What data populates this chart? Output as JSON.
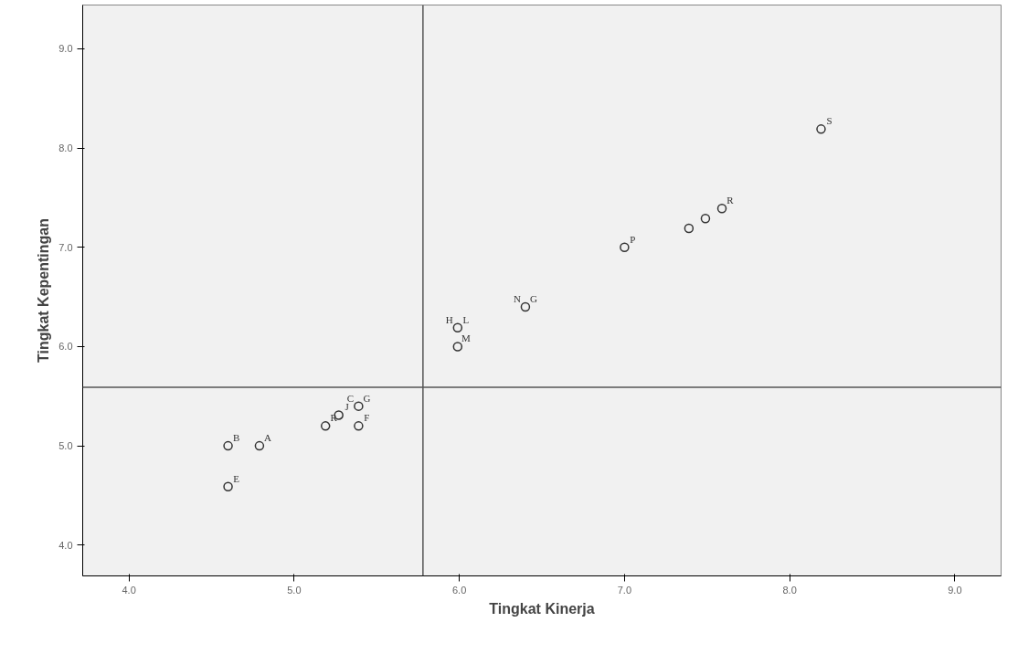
{
  "chart_data": {
    "type": "scatter",
    "xlabel": "Tingkat Kinerja",
    "ylabel": "Tingkat Kepentingan",
    "x": [
      4.6,
      4.79,
      4.6,
      5.19,
      5.27,
      5.39,
      5.39,
      5.99,
      5.99,
      6.4,
      7.0,
      7.39,
      7.49,
      7.59,
      8.19
    ],
    "series": [
      {
        "color": "#333333",
        "values": [
          5.0,
          5.0,
          4.59,
          5.2,
          5.31,
          5.4,
          5.2,
          6.19,
          6.0,
          6.4,
          7.0,
          7.19,
          7.29,
          7.39,
          8.19
        ]
      }
    ],
    "marker": "circle",
    "grid": false,
    "xlim": [
      3.72,
      9.28
    ],
    "ylim": [
      3.69,
      9.44
    ],
    "xticks": [
      {
        "value": 4,
        "label": "4.0"
      },
      {
        "value": 5,
        "label": "5.0"
      },
      {
        "value": 6,
        "label": "6.0"
      },
      {
        "value": 7,
        "label": "7.0"
      },
      {
        "value": 8,
        "label": "8.0"
      },
      {
        "value": 9,
        "label": "9.0"
      }
    ],
    "yticks": [
      {
        "value": 4,
        "label": "4.0"
      },
      {
        "value": 5,
        "label": "5.0"
      },
      {
        "value": 6,
        "label": "6.0"
      },
      {
        "value": 7,
        "label": "7.0"
      },
      {
        "value": 8,
        "label": "8.0"
      },
      {
        "value": 9,
        "label": "9.0"
      }
    ],
    "ref_lines": [
      {
        "axis": "x",
        "value": 5.78,
        "color": "#555555"
      },
      {
        "axis": "y",
        "value": 5.59,
        "color": "#555555"
      }
    ],
    "annotations": [
      {
        "text": "B",
        "x": 4.6,
        "y": 5.0
      },
      {
        "text": "A",
        "x": 4.79,
        "y": 5.0
      },
      {
        "text": "E",
        "x": 4.6,
        "y": 4.59
      },
      {
        "text": "G",
        "x": 5.39,
        "y": 5.4
      },
      {
        "text": "C",
        "x": 5.39,
        "y": 5.4
      },
      {
        "text": "J",
        "x": 5.27,
        "y": 5.31
      },
      {
        "text": "F",
        "x": 5.39,
        "y": 5.2
      },
      {
        "text": "R",
        "x": 5.19,
        "y": 5.2
      },
      {
        "text": "L",
        "x": 5.99,
        "y": 6.19
      },
      {
        "text": "H",
        "x": 5.99,
        "y": 6.19
      },
      {
        "text": "M",
        "x": 5.99,
        "y": 6.0
      },
      {
        "text": "G",
        "x": 6.4,
        "y": 6.4
      },
      {
        "text": "N",
        "x": 6.4,
        "y": 6.4
      },
      {
        "text": "P",
        "x": 7.0,
        "y": 7.0
      },
      {
        "text": "R",
        "x": 7.59,
        "y": 7.39
      },
      {
        "text": "S",
        "x": 8.19,
        "y": 8.19
      }
    ]
  }
}
